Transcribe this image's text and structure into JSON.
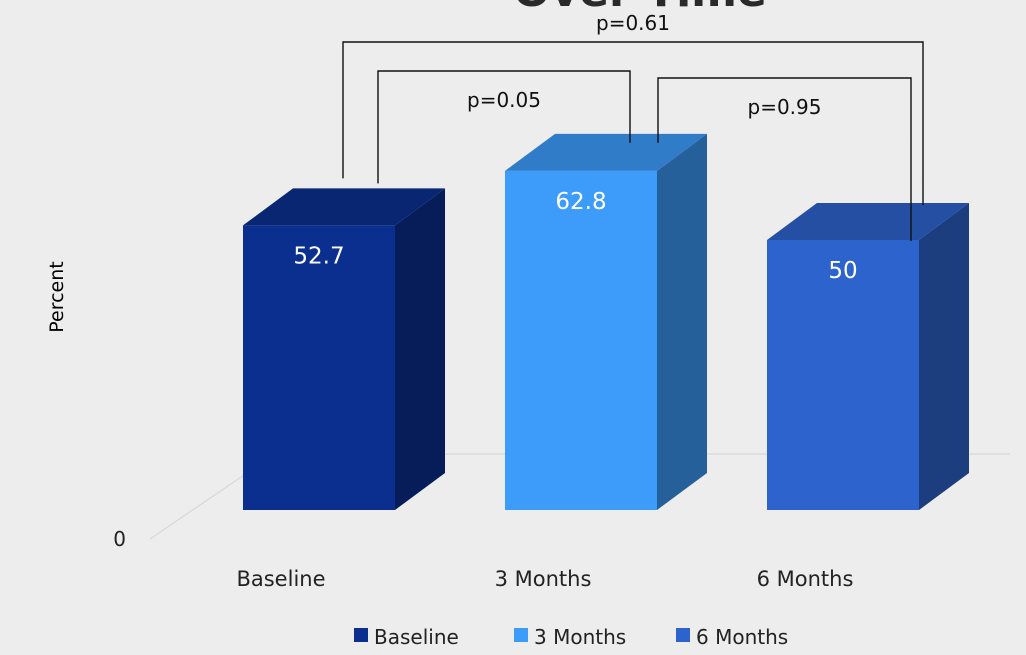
{
  "chart_data": {
    "type": "bar",
    "title": "Over Time",
    "xlabel": "",
    "ylabel": "Percent",
    "ylim": [
      0,
      70
    ],
    "yticks": [
      0,
      10,
      20,
      30,
      40,
      50,
      60,
      70
    ],
    "categories": [
      "Baseline",
      "3 Months",
      "6 Months"
    ],
    "values": [
      52.7,
      62.8,
      50
    ],
    "value_labels": [
      "52.7",
      "62.8",
      "50"
    ],
    "colors": [
      "#0a2f8f",
      "#3d9bfa",
      "#2d63cc"
    ],
    "legend_position": "bottom",
    "legend": [
      "Baseline",
      "3 Months",
      "6 Months"
    ],
    "three_d": true,
    "gridlines": true,
    "annotations": [
      {
        "label": "p=0.05",
        "from": "Baseline",
        "to": "3 Months"
      },
      {
        "label": "p=0.95",
        "from": "3 Months",
        "to": "6 Months"
      },
      {
        "label": "p=0.61",
        "from": "Baseline",
        "to": "6 Months"
      }
    ]
  }
}
